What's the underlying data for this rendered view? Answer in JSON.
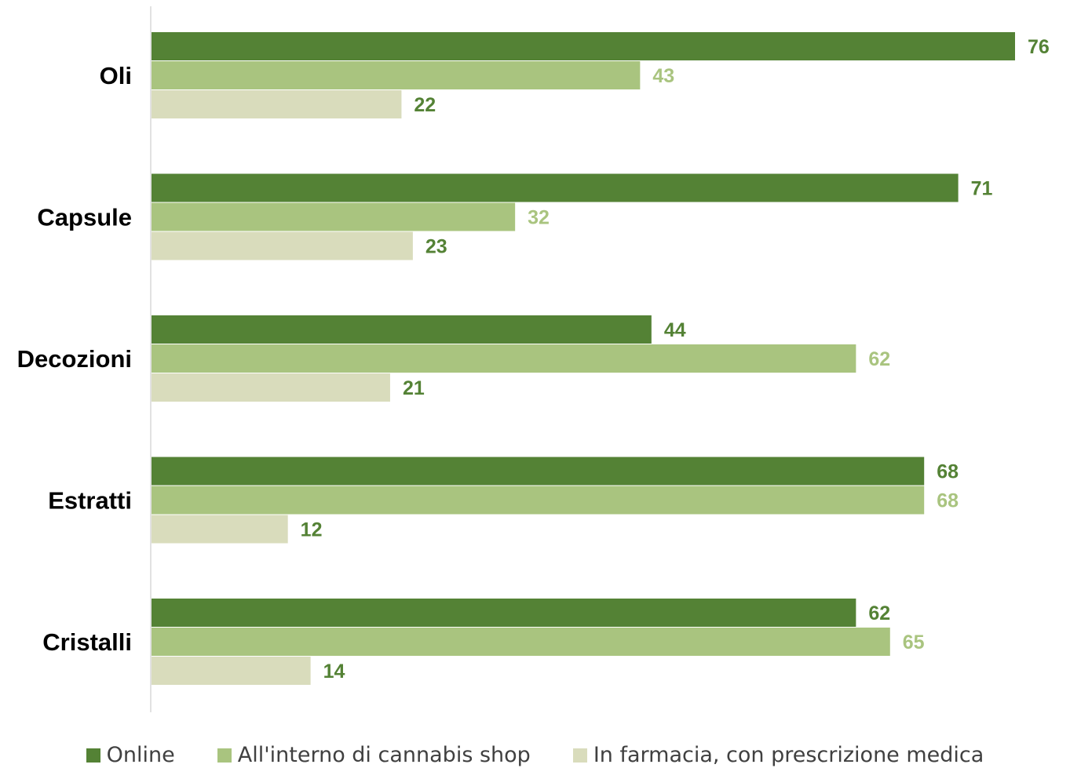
{
  "chart_data": {
    "type": "bar",
    "orientation": "horizontal",
    "categories": [
      "Oli",
      "Capsule",
      "Decozioni",
      "Estratti",
      "Cristalli"
    ],
    "series": [
      {
        "name": "Online",
        "values": [
          76,
          71,
          44,
          68,
          62
        ],
        "color": "#548235",
        "label_color": "#548235"
      },
      {
        "name": "All'interno di cannabis shop",
        "values": [
          43,
          32,
          62,
          68,
          65
        ],
        "color": "#A9C47F",
        "label_color": "#A9C47F"
      },
      {
        "name": "In farmacia, con prescrizione medica",
        "values": [
          22,
          23,
          21,
          12,
          14
        ],
        "color": "#D9DCBC",
        "label_color": "#548235"
      }
    ],
    "xlim": [
      0,
      80
    ],
    "grid": false,
    "legend_position": "bottom",
    "data_labels": true
  }
}
